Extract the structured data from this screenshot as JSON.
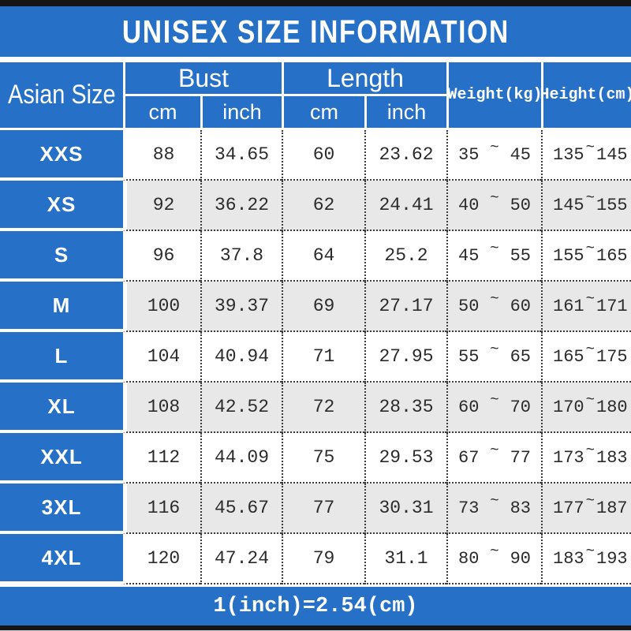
{
  "colors": {
    "blue": "#2671c7",
    "bar": "#151515",
    "rowAlt": "#e8e8e8",
    "ink": "#2b2b2b"
  },
  "chart_data": {
    "type": "table",
    "title": "UNISEX SIZE INFORMATION",
    "footer_note": "1(inch)=2.54(cm)",
    "tilde": "~",
    "headers": {
      "asian_size": "Asian Size",
      "bust": "Bust",
      "length": "Length",
      "cm": "cm",
      "inch": "inch",
      "weight": "Weight(kg)",
      "height": "Height(cm)"
    },
    "columns": [
      "Asian Size",
      "Bust cm",
      "Bust inch",
      "Length cm",
      "Length inch",
      "Weight(kg)",
      "Height(cm)"
    ],
    "rows": [
      {
        "size": "XXS",
        "bust_cm": "88",
        "bust_inch": "34.65",
        "length_cm": "60",
        "length_inch": "23.62",
        "weight_min": "35",
        "weight_max": "45",
        "height_min": "135",
        "height_max": "145"
      },
      {
        "size": "XS",
        "bust_cm": "92",
        "bust_inch": "36.22",
        "length_cm": "62",
        "length_inch": "24.41",
        "weight_min": "40",
        "weight_max": "50",
        "height_min": "145",
        "height_max": "155"
      },
      {
        "size": "S",
        "bust_cm": "96",
        "bust_inch": "37.8",
        "length_cm": "64",
        "length_inch": "25.2",
        "weight_min": "45",
        "weight_max": "55",
        "height_min": "155",
        "height_max": "165"
      },
      {
        "size": "M",
        "bust_cm": "100",
        "bust_inch": "39.37",
        "length_cm": "69",
        "length_inch": "27.17",
        "weight_min": "50",
        "weight_max": "60",
        "height_min": "161",
        "height_max": "171"
      },
      {
        "size": "L",
        "bust_cm": "104",
        "bust_inch": "40.94",
        "length_cm": "71",
        "length_inch": "27.95",
        "weight_min": "55",
        "weight_max": "65",
        "height_min": "165",
        "height_max": "175"
      },
      {
        "size": "XL",
        "bust_cm": "108",
        "bust_inch": "42.52",
        "length_cm": "72",
        "length_inch": "28.35",
        "weight_min": "60",
        "weight_max": "70",
        "height_min": "170",
        "height_max": "180"
      },
      {
        "size": "XXL",
        "bust_cm": "112",
        "bust_inch": "44.09",
        "length_cm": "75",
        "length_inch": "29.53",
        "weight_min": "67",
        "weight_max": "77",
        "height_min": "173",
        "height_max": "183"
      },
      {
        "size": "3XL",
        "bust_cm": "116",
        "bust_inch": "45.67",
        "length_cm": "77",
        "length_inch": "30.31",
        "weight_min": "73",
        "weight_max": "83",
        "height_min": "177",
        "height_max": "187"
      },
      {
        "size": "4XL",
        "bust_cm": "120",
        "bust_inch": "47.24",
        "length_cm": "79",
        "length_inch": "31.1",
        "weight_min": "80",
        "weight_max": "90",
        "height_min": "183",
        "height_max": "193"
      }
    ]
  }
}
